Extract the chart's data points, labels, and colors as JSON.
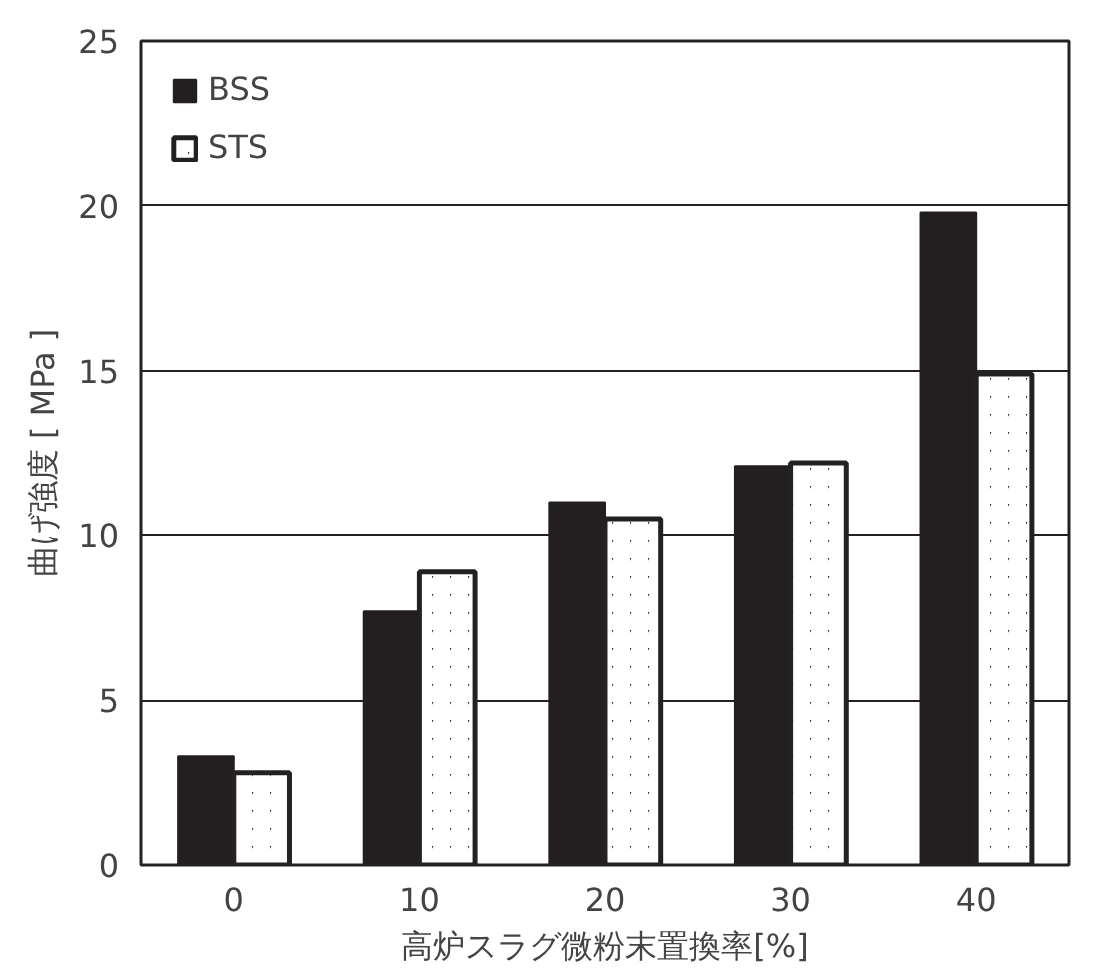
{
  "chart_data": {
    "type": "bar",
    "xlabel": "高炉スラグ微粉末置換率[%]",
    "ylabel": "曲げ強度 [ MPa ]",
    "categories": [
      "0",
      "10",
      "20",
      "30",
      "40"
    ],
    "series": [
      {
        "name": "BSS",
        "color": "#231f20",
        "values": [
          3.3,
          7.7,
          11.0,
          12.1,
          19.8
        ]
      },
      {
        "name": "STS",
        "color": "#222222",
        "values": [
          2.8,
          8.9,
          10.5,
          12.2,
          14.9
        ]
      }
    ],
    "ylim": [
      0,
      25
    ],
    "yticks": [
      0,
      5,
      10,
      15,
      20,
      25
    ],
    "grid": "y",
    "legend": "top left"
  }
}
